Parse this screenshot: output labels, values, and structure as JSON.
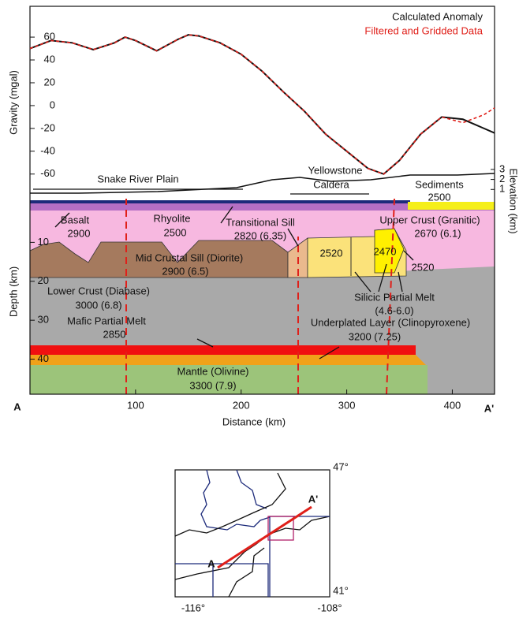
{
  "chart_data": {
    "type": "line",
    "x_label": "Distance (km)",
    "y_label": "Gravity (mgal)",
    "x": [
      0,
      20,
      40,
      60,
      80,
      90,
      100,
      120,
      140,
      150,
      160,
      180,
      200,
      220,
      240,
      260,
      280,
      300,
      320,
      335,
      350,
      370,
      390,
      410,
      430,
      440
    ],
    "series": [
      {
        "name": "Calculated Anomaly",
        "color": "#111111",
        "values": [
          50,
          57,
          55,
          49,
          55,
          60,
          57,
          48,
          58,
          62,
          61,
          55,
          45,
          30,
          12,
          -5,
          -25,
          -40,
          -55,
          -60,
          -48,
          -25,
          -10,
          -12,
          -20,
          -24
        ]
      },
      {
        "name": "Filtered and Gridded Data",
        "color": "#e0201a",
        "values": [
          50,
          57,
          55,
          49,
          55,
          60,
          57,
          48,
          58,
          62,
          61,
          55,
          45,
          30,
          12,
          -5,
          -25,
          -40,
          -55,
          -60,
          -48,
          -25,
          -10,
          -15,
          -8,
          -2
        ]
      }
    ],
    "xlim": [
      0,
      440
    ],
    "xticks": [
      100,
      200,
      300,
      400
    ],
    "ylim": [
      -65,
      87
    ],
    "yticks": [
      60,
      40,
      20,
      0,
      -20,
      -40,
      -60
    ],
    "legend": "upper right"
  },
  "cross_section": {
    "depth_label": "Depth (km)",
    "depth_lim": [
      0,
      49
    ],
    "depth_ticks": [
      10,
      20,
      30,
      40
    ],
    "elevation_label": "Elevation (km)",
    "elevation_lim": [
      0,
      3.5
    ],
    "elevation_ticks": [
      1,
      2,
      3
    ],
    "labels": [
      "Snake River Plain",
      "Yellowstone",
      "Caldera",
      "Sediments",
      "2500",
      "Basalt",
      "2900",
      "Rhyolite",
      "2500",
      "Transitional Sill",
      "2820 (6.35)",
      "Upper Crust (Granitic)",
      "2670 (6.1)",
      "Mid Crustal Sill (Diorite)",
      "2900 (6.5)",
      "2520",
      "2470",
      "2520",
      "Lower Crust (Diabase)",
      "3000 (6.8)",
      "Silicic Partial Melt",
      "(4.6-6.0)",
      "Mafic Partial Melt",
      "2850",
      "Underplated Layer (Clinopyroxene)",
      "3200 (7.25)",
      "Mantle (Olivine)",
      "3300 (7.9)",
      "A",
      "A'"
    ]
  },
  "map": {
    "labels": [
      "47°",
      "41°",
      "-116°",
      "-108°",
      "A",
      "A'"
    ]
  }
}
